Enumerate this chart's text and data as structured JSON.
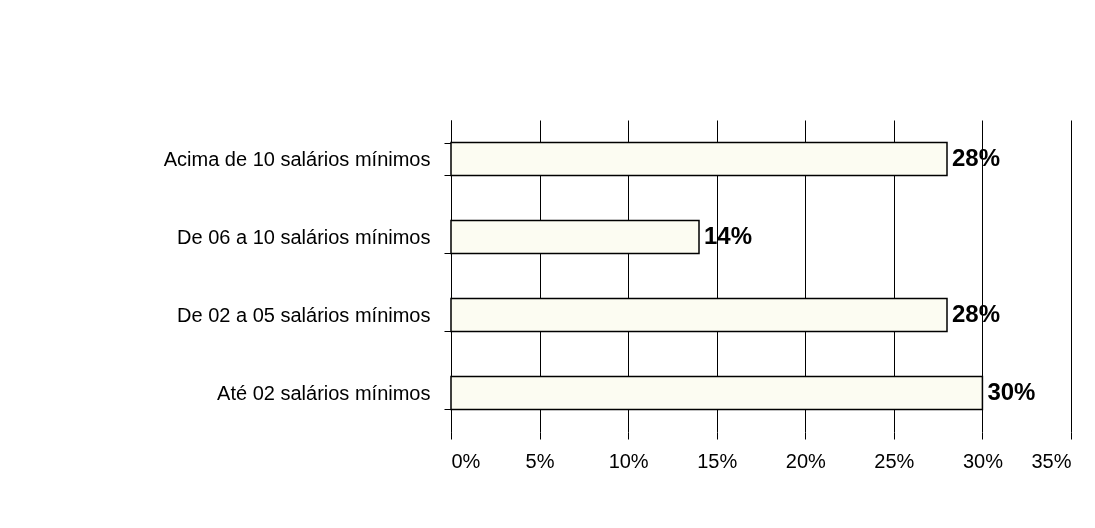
{
  "chart_data": {
    "type": "bar",
    "orientation": "horizontal",
    "categories": [
      "Acima de 10 salários mínimos",
      "De 06 a 10 salários mínimos",
      "De 02 a 05 salários mínimos",
      "Até 02 salários mínimos"
    ],
    "values": [
      28,
      14,
      28,
      30
    ],
    "color": "#fcfcf2",
    "value_labels": [
      "28%",
      "14%",
      "28%",
      "30%"
    ],
    "xlim": [
      0,
      35
    ],
    "xticks": [
      {
        "value": 0,
        "label": "0%"
      },
      {
        "value": 5,
        "label": "5%"
      },
      {
        "value": 10,
        "label": "10%"
      },
      {
        "value": 15,
        "label": "15%"
      },
      {
        "value": 20,
        "label": "20%"
      },
      {
        "value": 25,
        "label": "25%"
      },
      {
        "value": 30,
        "label": "30%"
      },
      {
        "value": 35,
        "label": "35%"
      }
    ],
    "grid": "x"
  }
}
